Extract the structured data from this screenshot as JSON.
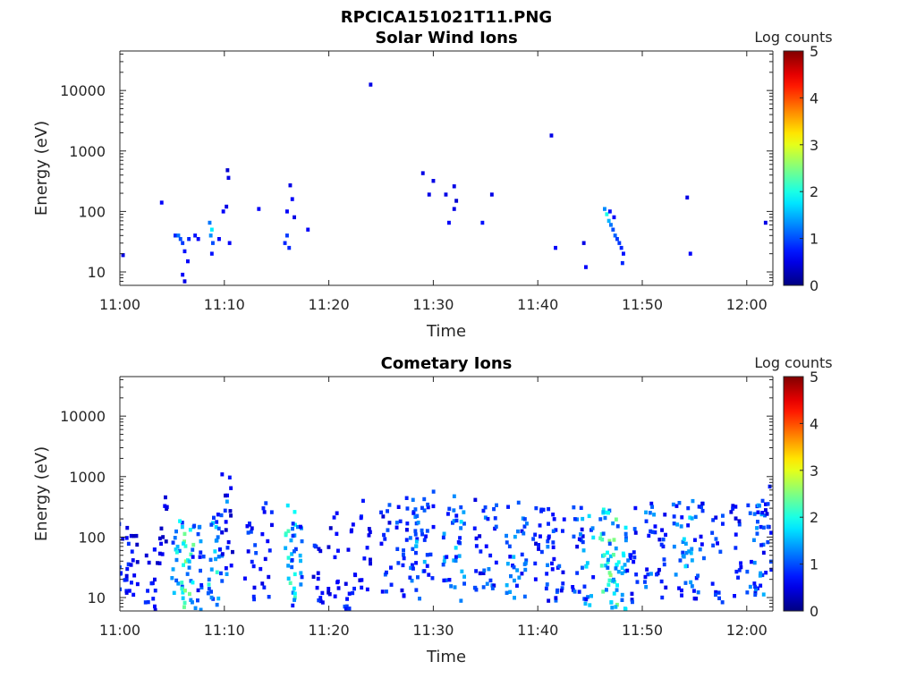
{
  "figure": {
    "title": "RPCICA151021T11.PNG"
  },
  "palette": {
    "colormap": "jet",
    "axis_color": "#262626",
    "background": "#ffffff"
  },
  "chart_data": [
    {
      "type": "heatmap",
      "title": "Solar Wind Ions",
      "xlabel": "Time",
      "ylabel": "Energy (eV)",
      "x_ticks": [
        "11:00",
        "11:10",
        "11:20",
        "11:30",
        "11:40",
        "11:50",
        "12:00"
      ],
      "x_range_minutes": [
        0,
        62.5
      ],
      "y_ticks": [
        "10",
        "100",
        "1000",
        "10000"
      ],
      "y_scale": "log",
      "ylim": [
        6,
        45000
      ],
      "colorbar": {
        "label": "Log counts",
        "range": [
          0,
          5
        ],
        "ticks": [
          "0",
          "1",
          "2",
          "3",
          "4",
          "5"
        ]
      },
      "points": [
        [
          0.3,
          19,
          0.5
        ],
        [
          4.0,
          140,
          0.6
        ],
        [
          5.3,
          40,
          0.8
        ],
        [
          5.6,
          40,
          1.2
        ],
        [
          5.8,
          35,
          1.0
        ],
        [
          6.0,
          30,
          0.9
        ],
        [
          6.2,
          22,
          0.7
        ],
        [
          6.0,
          9,
          0.6
        ],
        [
          6.2,
          7,
          0.5
        ],
        [
          6.5,
          15,
          0.6
        ],
        [
          6.6,
          35,
          0.8
        ],
        [
          7.2,
          40,
          0.7
        ],
        [
          7.5,
          35,
          0.6
        ],
        [
          8.6,
          65,
          1.2
        ],
        [
          8.8,
          50,
          1.8
        ],
        [
          8.7,
          40,
          1.3
        ],
        [
          8.9,
          30,
          1.0
        ],
        [
          8.8,
          20,
          0.7
        ],
        [
          9.5,
          35,
          0.6
        ],
        [
          9.9,
          100,
          0.6
        ],
        [
          10.2,
          120,
          0.5
        ],
        [
          10.3,
          480,
          0.4
        ],
        [
          10.4,
          360,
          0.5
        ],
        [
          10.5,
          30,
          0.6
        ],
        [
          13.3,
          110,
          0.6
        ],
        [
          15.8,
          30,
          0.8
        ],
        [
          16.0,
          40,
          0.9
        ],
        [
          16.2,
          25,
          0.8
        ],
        [
          16.0,
          100,
          0.6
        ],
        [
          16.3,
          270,
          0.5
        ],
        [
          16.5,
          160,
          0.6
        ],
        [
          16.7,
          80,
          0.5
        ],
        [
          18.0,
          50,
          0.6
        ],
        [
          24.0,
          12500,
          0.5
        ],
        [
          29.0,
          430,
          0.5
        ],
        [
          29.6,
          190,
          0.5
        ],
        [
          30.0,
          320,
          0.5
        ],
        [
          31.2,
          190,
          0.5
        ],
        [
          32.0,
          260,
          0.5
        ],
        [
          32.0,
          110,
          0.5
        ],
        [
          31.5,
          65,
          0.6
        ],
        [
          32.2,
          150,
          0.4
        ],
        [
          34.7,
          65,
          0.7
        ],
        [
          35.6,
          190,
          0.5
        ],
        [
          41.3,
          1800,
          0.5
        ],
        [
          41.7,
          25,
          0.6
        ],
        [
          44.4,
          30,
          0.5
        ],
        [
          44.6,
          12,
          0.6
        ],
        [
          46.4,
          110,
          1.3
        ],
        [
          46.6,
          90,
          2.0
        ],
        [
          46.8,
          70,
          1.5
        ],
        [
          47.0,
          60,
          1.2
        ],
        [
          47.2,
          50,
          1.0
        ],
        [
          47.4,
          40,
          1.1
        ],
        [
          47.6,
          35,
          0.9
        ],
        [
          47.8,
          30,
          0.9
        ],
        [
          48.0,
          25,
          0.8
        ],
        [
          48.2,
          20,
          0.7
        ],
        [
          48.1,
          14,
          0.8
        ],
        [
          46.9,
          100,
          0.7
        ],
        [
          47.3,
          80,
          0.6
        ],
        [
          54.3,
          170,
          0.5
        ],
        [
          54.6,
          20,
          0.6
        ],
        [
          61.8,
          65,
          0.5
        ]
      ]
    },
    {
      "type": "heatmap",
      "title": "Cometary Ions",
      "xlabel": "Time",
      "ylabel": "Energy (eV)",
      "x_ticks": [
        "11:00",
        "11:10",
        "11:20",
        "11:30",
        "11:40",
        "11:50",
        "12:00"
      ],
      "x_range_minutes": [
        0,
        62.5
      ],
      "y_ticks": [
        "10",
        "100",
        "1000",
        "10000"
      ],
      "y_scale": "log",
      "ylim": [
        6,
        45000
      ],
      "colorbar": {
        "label": "Log counts",
        "range": [
          0,
          5
        ],
        "ticks": [
          "0",
          "1",
          "2",
          "3",
          "4",
          "5"
        ]
      },
      "bursts": [
        [
          0.3,
          40,
          0.9
        ],
        [
          1.2,
          50,
          0.7
        ],
        [
          3.0,
          10,
          0.8
        ],
        [
          4.0,
          150,
          0.6
        ],
        [
          5.5,
          30,
          1.8
        ],
        [
          6.5,
          25,
          2.3
        ],
        [
          7.5,
          25,
          1.2
        ],
        [
          9.0,
          45,
          1.8
        ],
        [
          9.8,
          70,
          1.2
        ],
        [
          10.3,
          200,
          0.7
        ],
        [
          12.5,
          40,
          0.9
        ],
        [
          14.0,
          60,
          0.8
        ],
        [
          16.3,
          60,
          1.9
        ],
        [
          17.0,
          35,
          1.3
        ],
        [
          19.0,
          50,
          0.8
        ],
        [
          20.5,
          60,
          0.7
        ],
        [
          22.0,
          35,
          0.9
        ],
        [
          23.5,
          80,
          0.7
        ],
        [
          25.5,
          60,
          0.9
        ],
        [
          27.0,
          55,
          1.0
        ],
        [
          28.0,
          90,
          1.1
        ],
        [
          28.8,
          60,
          1.4
        ],
        [
          29.5,
          110,
          0.9
        ],
        [
          31.5,
          90,
          1.3
        ],
        [
          32.5,
          55,
          1.5
        ],
        [
          34.5,
          80,
          1.0
        ],
        [
          35.5,
          60,
          1.1
        ],
        [
          37.5,
          50,
          1.3
        ],
        [
          38.5,
          60,
          1.2
        ],
        [
          40.0,
          90,
          0.8
        ],
        [
          41.2,
          55,
          1.1
        ],
        [
          42.0,
          50,
          1.0
        ],
        [
          43.8,
          50,
          1.1
        ],
        [
          44.8,
          40,
          1.5
        ],
        [
          46.5,
          50,
          2.2
        ],
        [
          47.2,
          40,
          2.1
        ],
        [
          48.0,
          30,
          1.7
        ],
        [
          49.0,
          50,
          1.0
        ],
        [
          50.8,
          70,
          1.2
        ],
        [
          51.8,
          60,
          0.9
        ],
        [
          53.5,
          60,
          1.2
        ],
        [
          54.5,
          80,
          1.5
        ],
        [
          55.5,
          60,
          1.0
        ],
        [
          57.2,
          50,
          0.9
        ],
        [
          59.0,
          60,
          0.9
        ],
        [
          60.5,
          60,
          1.1
        ],
        [
          61.5,
          60,
          1.3
        ],
        [
          61.8,
          120,
          0.9
        ]
      ]
    }
  ]
}
